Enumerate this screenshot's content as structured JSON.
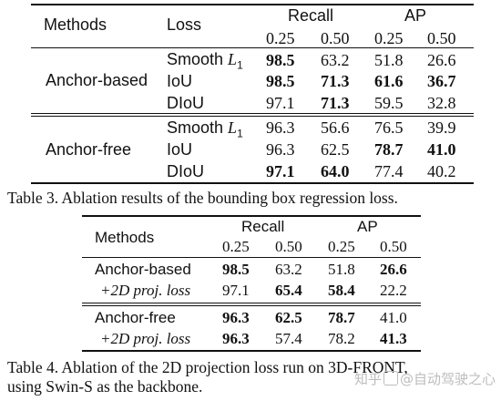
{
  "table3": {
    "header": {
      "methods": "Methods",
      "loss": "Loss",
      "recall": "Recall",
      "ap": "AP",
      "thresholds": [
        "0.25",
        "0.50",
        "0.25",
        "0.50"
      ]
    },
    "rows": [
      {
        "method": "Anchor-based",
        "loss": "Smooth L",
        "loss_sub": "1",
        "values": [
          "98.5",
          "63.2",
          "51.8",
          "26.6"
        ]
      },
      {
        "method": "",
        "loss": "IoU",
        "loss_sub": "",
        "values": [
          "98.5",
          "71.3",
          "61.6",
          "36.7"
        ]
      },
      {
        "method": "",
        "loss": "DIoU",
        "loss_sub": "",
        "values": [
          "97.1",
          "71.3",
          "59.5",
          "32.8"
        ]
      },
      {
        "method": "Anchor-free",
        "loss": "Smooth L",
        "loss_sub": "1",
        "values": [
          "96.3",
          "56.6",
          "76.5",
          "39.9"
        ]
      },
      {
        "method": "",
        "loss": "IoU",
        "loss_sub": "",
        "values": [
          "96.3",
          "62.5",
          "78.7",
          "41.0"
        ]
      },
      {
        "method": "",
        "loss": "DIoU",
        "loss_sub": "",
        "values": [
          "97.1",
          "64.0",
          "77.4",
          "40.2"
        ]
      }
    ],
    "caption": "Table 3. Ablation results of the bounding box regression loss."
  },
  "table4": {
    "header": {
      "methods": "Methods",
      "recall": "Recall",
      "ap": "AP",
      "thresholds": [
        "0.25",
        "0.50",
        "0.25",
        "0.50"
      ]
    },
    "rows": [
      {
        "method": "Anchor-based",
        "values": [
          "98.5",
          "63.2",
          "51.8",
          "26.6"
        ]
      },
      {
        "method": "+2D proj. loss",
        "values": [
          "97.1",
          "65.4",
          "58.4",
          "22.2"
        ]
      },
      {
        "method": "Anchor-free",
        "values": [
          "96.3",
          "62.5",
          "78.7",
          "41.0"
        ]
      },
      {
        "method": "+2D proj. loss",
        "values": [
          "96.3",
          "57.4",
          "78.2",
          "41.3"
        ]
      }
    ],
    "caption_line1": "Table 4.  Ablation of the 2D projection loss run on 3D-FRONT,",
    "caption_line2": "using Swin-S as the backbone."
  },
  "watermark": {
    "prefix": "知乎",
    "at": "@",
    "name": "自动驾驶之心",
    "icon": "zhihu-badge-icon"
  }
}
